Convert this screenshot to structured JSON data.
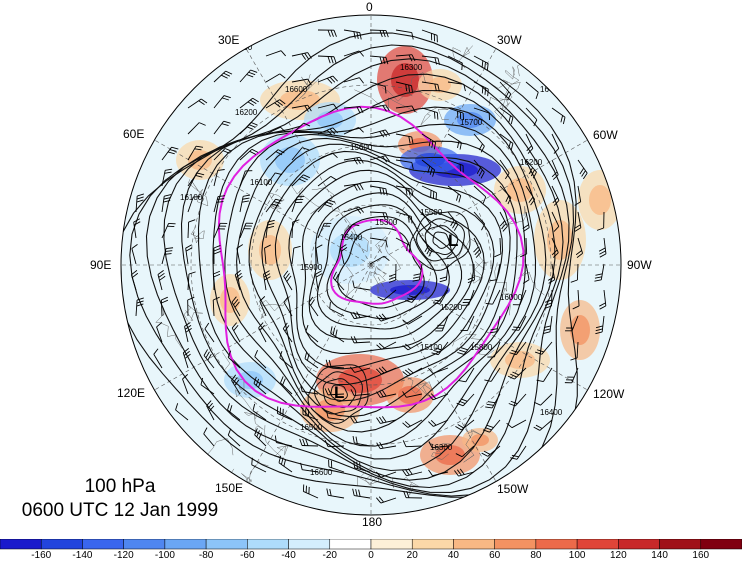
{
  "title": {
    "level": "100 hPa",
    "time": "0600 UTC 12 Jan 1999"
  },
  "longitude_labels": {
    "lon_0": "0",
    "lon_30w": "30W",
    "lon_60w": "60W",
    "lon_90w": "90W",
    "lon_120w": "120W",
    "lon_150w": "150W",
    "lon_180": "180",
    "lon_150e": "150E",
    "lon_120e": "120E",
    "lon_90e": "90E",
    "lon_60e": "60E",
    "lon_30e": "30E"
  },
  "contour_labels": [
    "16500",
    "16600",
    "16400",
    "16300",
    "16200",
    "16100",
    "16000",
    "15900",
    "15800",
    "15700",
    "15600",
    "15500",
    "15400",
    "15300",
    "15200",
    "15100"
  ],
  "lows": [
    "L",
    "L"
  ],
  "colorbar": {
    "ticks": [
      "-160",
      "-140",
      "-120",
      "-100",
      "-80",
      "-60",
      "-40",
      "-20",
      "0",
      "20",
      "40",
      "60",
      "80",
      "100",
      "120",
      "140",
      "160"
    ],
    "colors": [
      "#1a1acc",
      "#2244dd",
      "#3a66ee",
      "#4f86f0",
      "#6aa6f4",
      "#8cc4f8",
      "#aedcfb",
      "#d4eefd",
      "#ffffff",
      "#fdf0d8",
      "#fbd8a8",
      "#f8b884",
      "#f39262",
      "#ec6a4a",
      "#e04538",
      "#c8282a",
      "#a01018"
    ]
  },
  "colors": {
    "contour": "#111111",
    "magenta_contour": "#e020e0",
    "barb": "#000000"
  }
}
